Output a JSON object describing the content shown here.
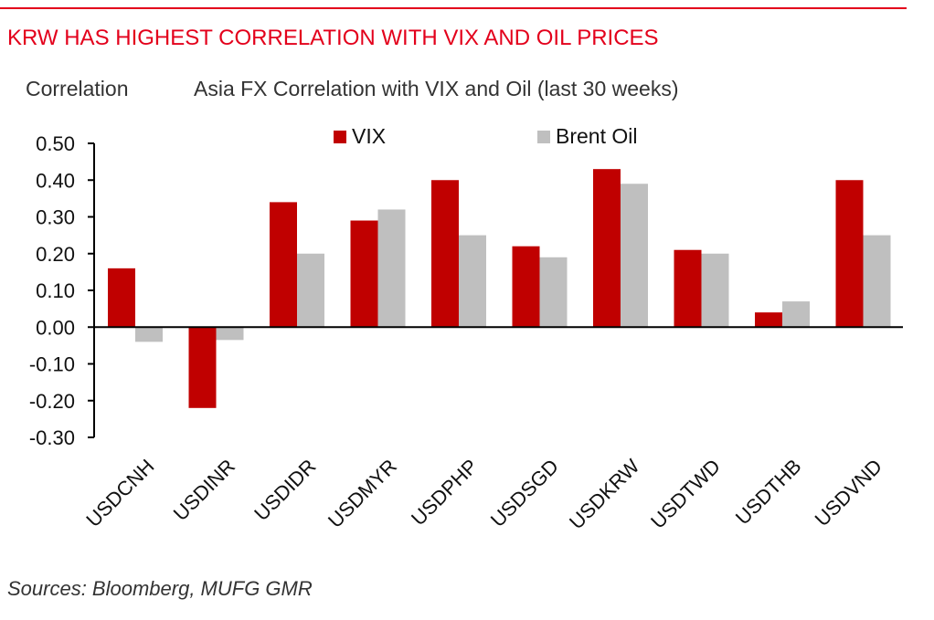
{
  "headline": "KRW HAS HIGHEST CORRELATION WITH VIX AND OIL PRICES",
  "source": "Sources:  Bloomberg, MUFG GMR",
  "colors": {
    "vix": "#c00000",
    "oil": "#bfbfbf",
    "accent": "#e3001b"
  },
  "chart_data": {
    "type": "bar",
    "title": "Asia FX Correlation with VIX and Oil (last 30 weeks)",
    "ylabel": "Correlation",
    "xlabel": "",
    "ylim": [
      -0.3,
      0.5
    ],
    "yticks": [
      "0.50",
      "0.40",
      "0.30",
      "0.20",
      "0.10",
      "0.00",
      "-0.10",
      "-0.20",
      "-0.30"
    ],
    "legend_position": "top",
    "grid": false,
    "categories": [
      "USDCNH",
      "USDINR",
      "USDIDR",
      "USDMYR",
      "USDPHP",
      "USDSGD",
      "USDKRW",
      "USDTWD",
      "USDTHB",
      "USDVND"
    ],
    "series": [
      {
        "name": "VIX",
        "values": [
          0.16,
          -0.22,
          0.34,
          0.29,
          0.4,
          0.22,
          0.43,
          0.21,
          0.04,
          0.4
        ]
      },
      {
        "name": "Brent Oil",
        "values": [
          -0.04,
          -0.035,
          0.2,
          0.32,
          0.25,
          0.19,
          0.39,
          0.2,
          0.07,
          0.25
        ]
      }
    ]
  }
}
